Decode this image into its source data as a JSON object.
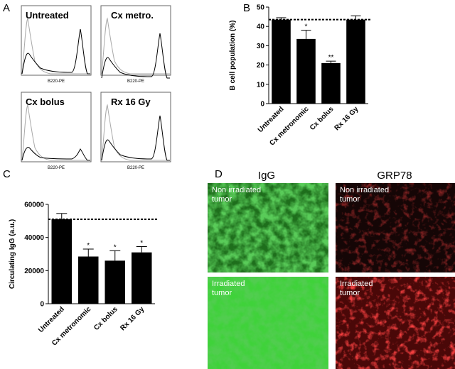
{
  "panel_labels": [
    "A",
    "B",
    "C",
    "D"
  ],
  "histograms": {
    "titles": [
      "Untreated",
      "Cx metro.",
      "Cx bolus",
      "Rx 16 Gy"
    ],
    "x_label": "B220-PE"
  },
  "images": {
    "columns": [
      "IgG",
      "GRP78"
    ],
    "row_labels": [
      "Non irradiated tumor",
      "Irradiated tumor"
    ]
  },
  "chart_data": [
    {
      "type": "bar",
      "ylabel": "B cell population (%)",
      "categories": [
        "Untreated",
        "Cx metronomic",
        "Cx bolus",
        "Rx 16 Gy"
      ],
      "values": [
        43.5,
        33.5,
        21,
        43.5
      ],
      "errors": [
        1,
        4.5,
        1,
        2
      ],
      "significance": [
        null,
        "*",
        "**",
        null
      ],
      "reference": 43.5,
      "color": "#000000",
      "ylim": [
        0,
        50
      ],
      "yticks": [
        0,
        10,
        20,
        30,
        40,
        50
      ]
    },
    {
      "type": "bar",
      "ylabel": "Circulating IgG (a.u.)",
      "categories": [
        "Untreated",
        "Cx metronomic",
        "Cx bolus",
        "Rx 16 Gy"
      ],
      "values": [
        51000,
        28500,
        26000,
        31000
      ],
      "errors": [
        3500,
        4500,
        6000,
        3500
      ],
      "significance": [
        null,
        "*",
        "*",
        "*"
      ],
      "reference": 51000,
      "color": "#000000",
      "ylim": [
        0,
        60000
      ],
      "yticks": [
        0,
        20000,
        40000,
        60000
      ]
    }
  ]
}
